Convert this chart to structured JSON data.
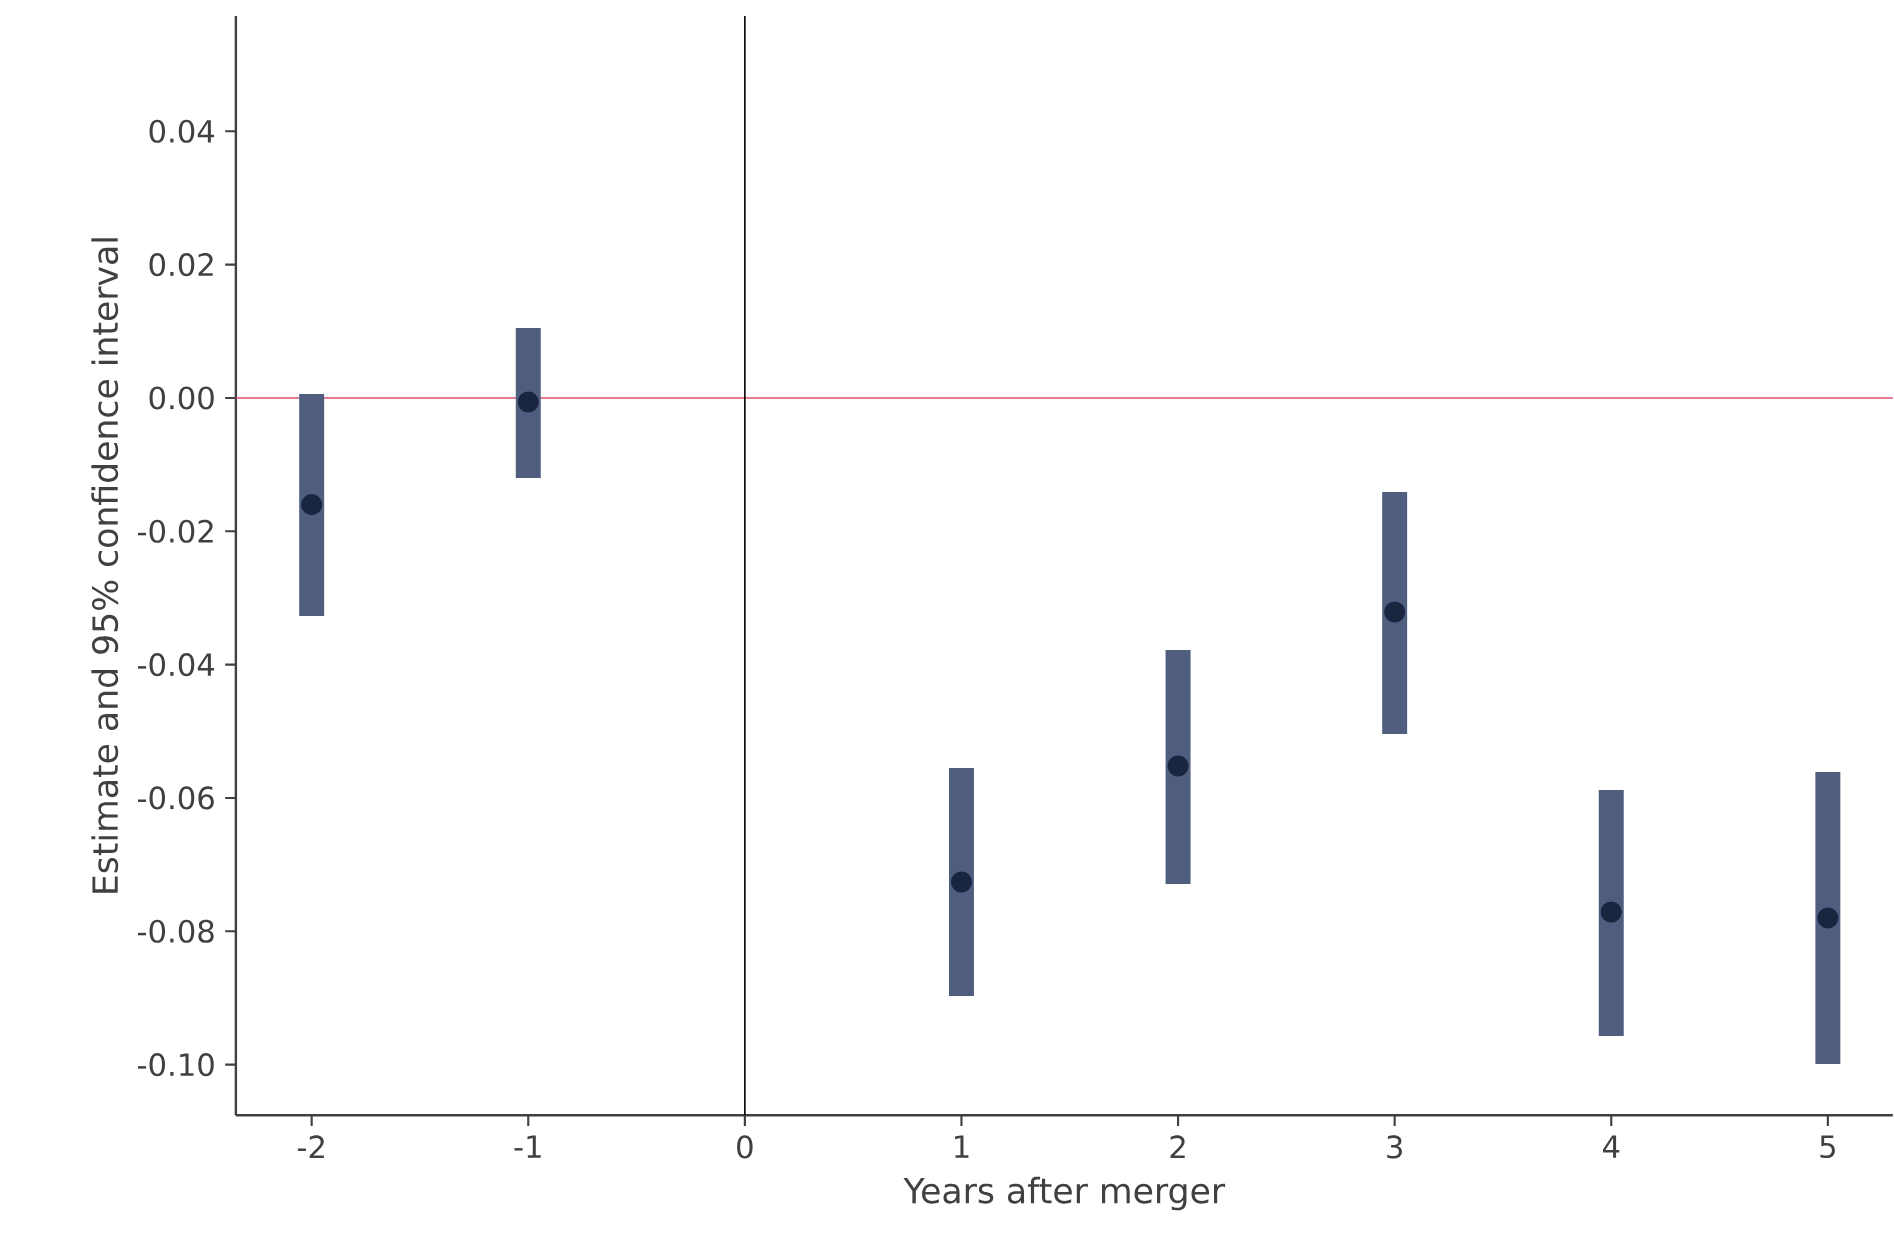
{
  "chart_data": {
    "type": "scatter",
    "xlabel": "Years after merger",
    "ylabel": "Estimate and 95% confidence interval",
    "x": [
      -2,
      -1,
      1,
      2,
      3,
      4,
      5
    ],
    "values": [
      -0.016,
      -0.0006,
      -0.0726,
      -0.0552,
      -0.0321,
      -0.0771,
      -0.078
    ],
    "errors": [
      [
        -0.0327,
        0.0006
      ],
      [
        -0.012,
        0.0105
      ],
      [
        -0.0897,
        -0.0555
      ],
      [
        -0.0729,
        -0.0378
      ],
      [
        -0.0504,
        -0.0141
      ],
      [
        -0.0957,
        -0.0588
      ],
      [
        -0.0999,
        -0.0561
      ]
    ],
    "color": "#1a2540",
    "marker": "circle",
    "grid": false,
    "xlim": [
      -2.35,
      5.3
    ],
    "ylim": [
      -0.1076,
      0.0573
    ],
    "xticks": [
      -2,
      -1,
      0,
      1,
      2,
      3,
      4,
      5
    ],
    "yticks": [
      {
        "value": -0.1,
        "label": "-0.10"
      },
      {
        "value": -0.08,
        "label": "-0.08"
      },
      {
        "value": -0.06,
        "label": "-0.06"
      },
      {
        "value": -0.04,
        "label": "-0.04"
      },
      {
        "value": -0.02,
        "label": "-0.02"
      },
      {
        "value": 0,
        "label": "0.00"
      },
      {
        "value": 0.02,
        "label": "0.02"
      },
      {
        "value": 0.04,
        "label": "0.04"
      }
    ],
    "ref_lines": [
      {
        "axis": "y",
        "value": 0,
        "color": "#e0506e"
      },
      {
        "axis": "x",
        "value": 0,
        "color": "#000000"
      }
    ]
  }
}
